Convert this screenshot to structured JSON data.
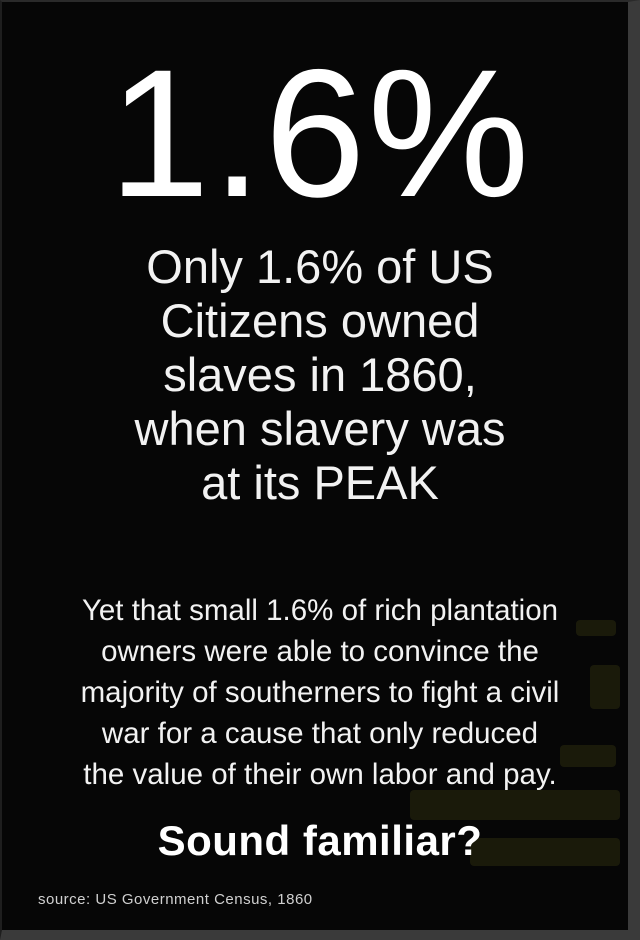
{
  "poster": {
    "big_number": "1.6%",
    "headline_lines": [
      "Only 1.6% of US",
      "Citizens owned",
      "slaves in 1860,",
      "when slavery was",
      "at its PEAK"
    ],
    "body_lines": [
      "Yet that small 1.6% of rich plantation",
      "owners were able to convince the",
      "majority of southerners to fight a civil",
      "war for a cause that only reduced",
      "the value of their own labor and pay."
    ],
    "tagline": "Sound familiar?",
    "source": "source:  US Government Census, 1860"
  },
  "colors": {
    "background": "#060606",
    "text": "#ffffff",
    "stain": "#1f1f0c"
  }
}
